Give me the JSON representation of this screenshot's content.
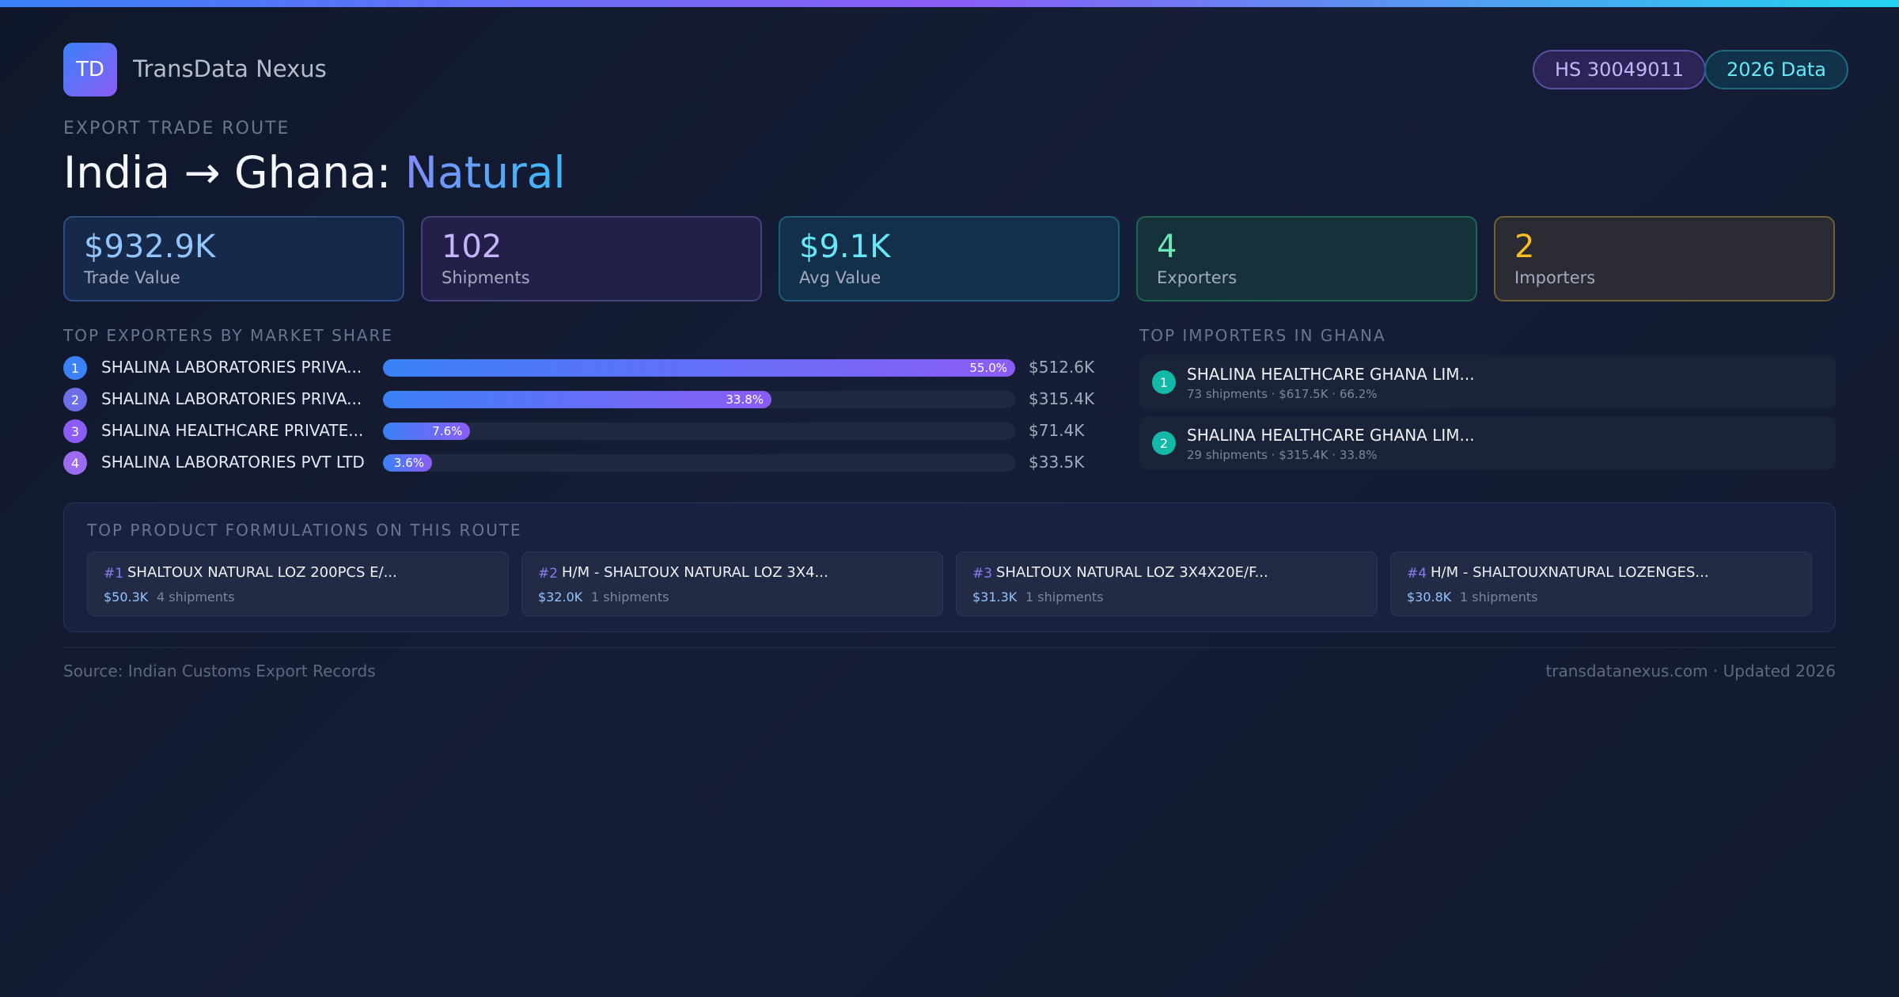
{
  "header": {
    "logo": "TD",
    "brand": "TransData Nexus",
    "badges": [
      "HS 30049011",
      "2026 Data"
    ]
  },
  "hero": {
    "eyebrow": "EXPORT TRADE ROUTE",
    "title": "India → Ghana:",
    "highlight": "Natural"
  },
  "stats": [
    {
      "value": "$932.9K",
      "label": "Trade Value"
    },
    {
      "value": "102",
      "label": "Shipments"
    },
    {
      "value": "$9.1K",
      "label": "Avg Value"
    },
    {
      "value": "4",
      "label": "Exporters"
    },
    {
      "value": "2",
      "label": "Importers"
    }
  ],
  "exporters": {
    "heading": "TOP EXPORTERS BY MARKET SHARE",
    "rows": [
      {
        "rank": "1",
        "name": "SHALINA LABORATORIES PRIVA...",
        "share": "55.0%",
        "value": "$512.6K"
      },
      {
        "rank": "2",
        "name": "SHALINA LABORATORIES PRIVA...",
        "share": "33.8%",
        "value": "$315.4K"
      },
      {
        "rank": "3",
        "name": "SHALINA HEALTHCARE PRIVATE...",
        "share": "7.6%",
        "value": "$71.4K"
      },
      {
        "rank": "4",
        "name": "SHALINA LABORATORIES PVT LTD",
        "share": "3.6%",
        "value": "$33.5K"
      }
    ]
  },
  "importers": {
    "heading": "TOP IMPORTERS IN GHANA",
    "rows": [
      {
        "rank": "1",
        "name": "SHALINA HEALTHCARE GHANA LIM...",
        "detail": "73 shipments · $617.5K · 66.2%"
      },
      {
        "rank": "2",
        "name": "SHALINA HEALTHCARE GHANA LIM...",
        "detail": "29 shipments · $315.4K · 33.8%"
      }
    ]
  },
  "products": {
    "heading": "TOP PRODUCT FORMULATIONS ON THIS ROUTE",
    "items": [
      {
        "rank": "#1",
        "name": "SHALTOUX NATURAL LOZ 200PCS E/...",
        "value": "$50.3K",
        "shipments": "4 shipments"
      },
      {
        "rank": "#2",
        "name": "H/M - SHALTOUX NATURAL LOZ 3X4...",
        "value": "$32.0K",
        "shipments": "1 shipments"
      },
      {
        "rank": "#3",
        "name": "SHALTOUX NATURAL LOZ 3X4X20E/F...",
        "value": "$31.3K",
        "shipments": "1 shipments"
      },
      {
        "rank": "#4",
        "name": "H/M - SHALTOUXNATURAL LOZENGES...",
        "value": "$30.8K",
        "shipments": "1 shipments"
      }
    ]
  },
  "footer": {
    "source": "Source: Indian Customs Export Records",
    "site": "transdatanexus.com · Updated 2026"
  }
}
